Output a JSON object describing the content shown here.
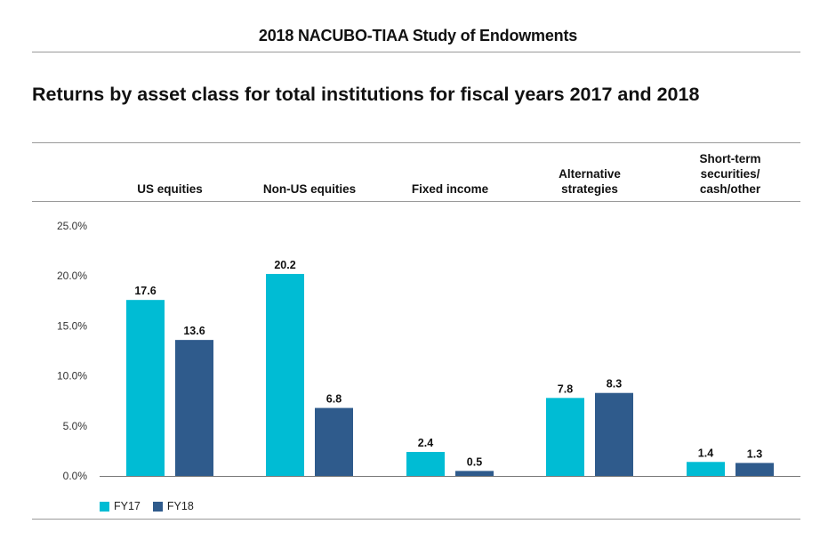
{
  "header": "2018 NACUBO-TIAA Study of Endowments",
  "chart_data": {
    "type": "bar",
    "title": "Returns by asset class for total institutions for fiscal years 2017 and 2018",
    "categories": [
      "US equities",
      "Non-US equities",
      "Fixed income",
      "Alternative strategies",
      "Short-term securities/ cash/other"
    ],
    "category_lines": [
      [
        "US equities"
      ],
      [
        "Non-US equities"
      ],
      [
        "Fixed income"
      ],
      [
        "Alternative",
        "strategies"
      ],
      [
        "Short-term",
        "securities/",
        "cash/other"
      ]
    ],
    "series": [
      {
        "name": "FY17",
        "color": "#00bcd4",
        "values": [
          17.6,
          20.2,
          2.4,
          7.8,
          1.4
        ],
        "labels": [
          "17.6",
          "20.2",
          "2.4",
          "7.8",
          "1.4"
        ]
      },
      {
        "name": "FY18",
        "color": "#2f5b8c",
        "values": [
          13.6,
          6.8,
          0.5,
          8.3,
          1.3
        ],
        "labels": [
          "13.6",
          "6.8",
          "0.5",
          "8.3",
          "1.3"
        ]
      }
    ],
    "ylim": [
      0,
      25
    ],
    "yticks": [
      0,
      5,
      10,
      15,
      20,
      25
    ],
    "ytick_labels": [
      "0.0%",
      "5.0%",
      "10.0%",
      "15.0%",
      "20.0%",
      "25.0%"
    ],
    "xlabel": "",
    "ylabel": "",
    "legend": "bottom-left",
    "grid": false
  }
}
